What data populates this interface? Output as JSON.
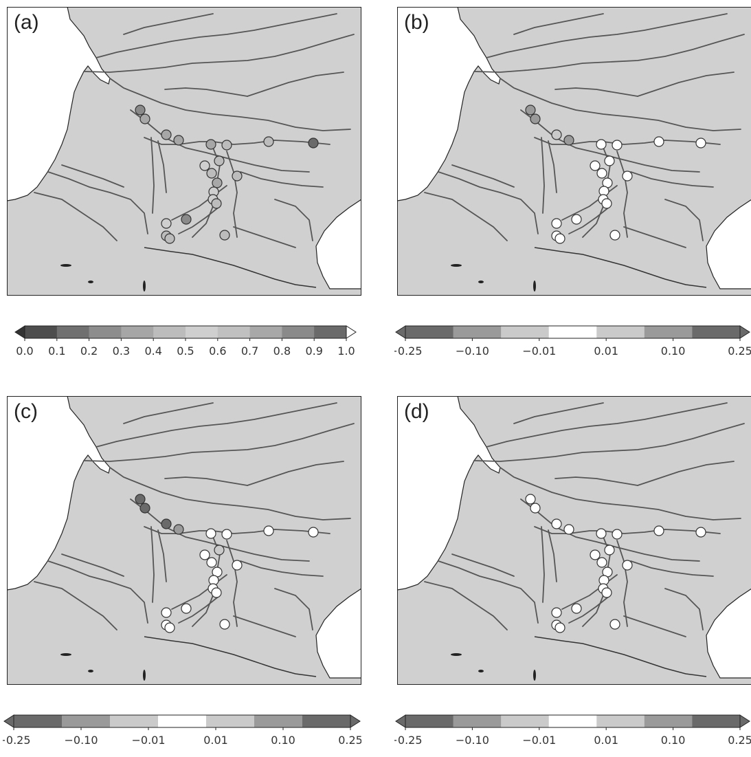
{
  "panels": [
    {
      "label": "(a)",
      "fill_scale": "abs"
    },
    {
      "label": "(b)",
      "fill_scale": "div"
    },
    {
      "label": "(c)",
      "fill_scale": "div"
    },
    {
      "label": "(d)",
      "fill_scale": "div"
    }
  ],
  "colorbars": [
    {
      "type": "sequential",
      "ticks": [
        "0.0",
        "0.1",
        "0.2",
        "0.3",
        "0.4",
        "0.5",
        "0.6",
        "0.7",
        "0.8",
        "0.9",
        "1.0"
      ],
      "colors": [
        "#4d4d4d",
        "#707070",
        "#8d8d8d",
        "#a6a6a6",
        "#bcbcbc",
        "#cfcfcf",
        "#c0c0c0",
        "#a8a8a8",
        "#8a8a8a",
        "#6a6a6a"
      ]
    },
    {
      "type": "diverging",
      "ticks": [
        "−0.25",
        "−0.10",
        "−0.01",
        "0.01",
        "0.10",
        "0.25"
      ],
      "colors": [
        "#6a6a6a",
        "#9a9a9a",
        "#cacaca",
        "#ffffff",
        "#cacaca",
        "#9a9a9a",
        "#6a6a6a"
      ]
    },
    {
      "type": "diverging",
      "ticks": [
        "−0.25",
        "−0.10",
        "−0.01",
        "0.01",
        "0.10",
        "0.25"
      ],
      "colors": [
        "#6a6a6a",
        "#9a9a9a",
        "#cacaca",
        "#ffffff",
        "#cacaca",
        "#9a9a9a",
        "#6a6a6a"
      ]
    },
    {
      "type": "diverging",
      "ticks": [
        "−0.25",
        "−0.10",
        "−0.01",
        "0.01",
        "0.10",
        "0.25"
      ],
      "colors": [
        "#6a6a6a",
        "#9a9a9a",
        "#cacaca",
        "#ffffff",
        "#cacaca",
        "#9a9a9a",
        "#6a6a6a"
      ]
    }
  ],
  "colors": {
    "land": "#d0d0d0",
    "sea": "#ffffff",
    "river": "#555555",
    "border": "#333333"
  }
}
